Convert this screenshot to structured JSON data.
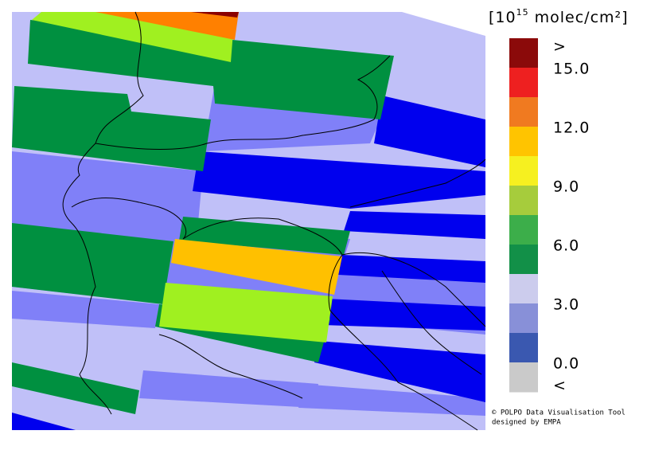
{
  "legend": {
    "title": {
      "base": "[10",
      "exponent": "15",
      "unit": " molec/cm²]"
    },
    "colors": [
      "#8b0a0a",
      "#ee2020",
      "#f07a20",
      "#ffc400",
      "#f6f020",
      "#a6cc3c",
      "#3cae4a",
      "#129048",
      "#cccced",
      "#8890d8",
      "#3a58b0",
      "#cacaca"
    ],
    "labels": [
      ">",
      "15.0",
      "12.0",
      "9.0",
      "6.0",
      "3.0",
      "0.0",
      "<"
    ]
  },
  "credits": [
    "© POLPO Data Visualisation Tool",
    "designed by EMPA"
  ]
}
